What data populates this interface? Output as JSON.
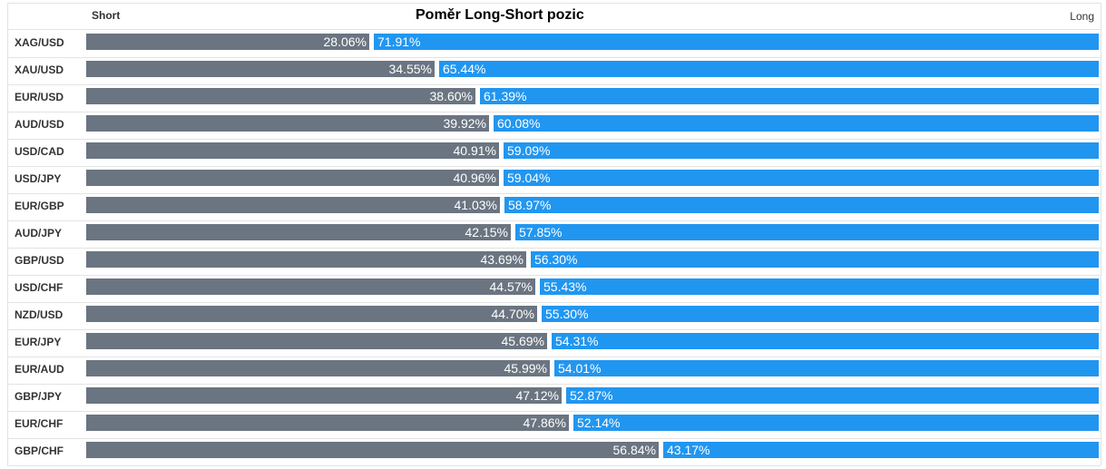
{
  "header": {
    "short_label": "Short",
    "title": "Poměr Long-Short pozic",
    "long_label": "Long"
  },
  "colors": {
    "short_bar": "#6b7581",
    "long_bar": "#2196f0"
  },
  "chart_data": {
    "type": "bar",
    "title": "Poměr Long-Short pozic",
    "categories": [
      "XAG/USD",
      "XAU/USD",
      "EUR/USD",
      "AUD/USD",
      "USD/CAD",
      "USD/JPY",
      "EUR/GBP",
      "AUD/JPY",
      "GBP/USD",
      "USD/CHF",
      "NZD/USD",
      "EUR/JPY",
      "EUR/AUD",
      "GBP/JPY",
      "EUR/CHF",
      "GBP/CHF"
    ],
    "series": [
      {
        "name": "Short",
        "values": [
          28.06,
          34.55,
          38.6,
          39.92,
          40.91,
          40.96,
          41.03,
          42.15,
          43.69,
          44.57,
          44.7,
          45.69,
          45.99,
          47.12,
          47.86,
          56.84
        ],
        "labels": [
          "28.06%",
          "34.55%",
          "38.60%",
          "39.92%",
          "40.91%",
          "40.96%",
          "41.03%",
          "42.15%",
          "43.69%",
          "44.57%",
          "44.70%",
          "45.69%",
          "45.99%",
          "47.12%",
          "47.86%",
          "56.84%"
        ]
      },
      {
        "name": "Long",
        "values": [
          71.91,
          65.44,
          61.39,
          60.08,
          59.09,
          59.04,
          58.97,
          57.85,
          56.3,
          55.43,
          55.3,
          54.31,
          54.01,
          52.87,
          52.14,
          43.17
        ],
        "labels": [
          "71.91%",
          "65.44%",
          "61.39%",
          "60.08%",
          "59.09%",
          "59.04%",
          "58.97%",
          "57.85%",
          "56.30%",
          "55.43%",
          "55.30%",
          "54.31%",
          "54.01%",
          "52.87%",
          "52.14%",
          "43.17%"
        ]
      }
    ]
  }
}
